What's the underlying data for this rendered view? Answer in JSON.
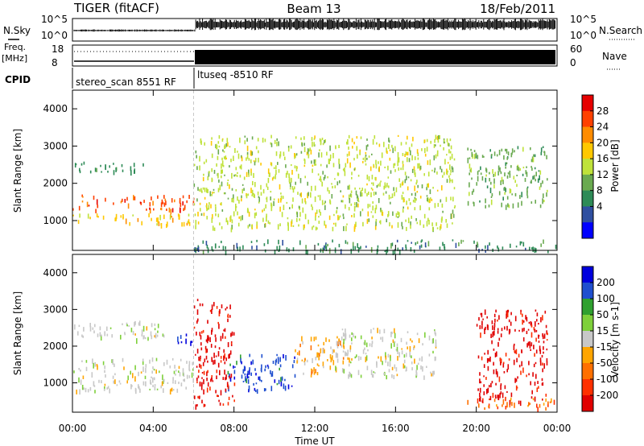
{
  "header": {
    "instrument": "TIGER (fitACF)",
    "beam": "Beam 13",
    "date": "18/Feb/2011"
  },
  "strips": {
    "nsky_label": "N.Sky",
    "nsearch_label": "N.Search",
    "noise_ticks_left": [
      "10^5",
      "10^0"
    ],
    "noise_ticks_right": [
      "10^5",
      "10^0"
    ],
    "freq_label_1": "Freq.",
    "freq_label_2": "[MHz]",
    "freq_ticks": [
      "18",
      "8"
    ],
    "nave_label": "Nave",
    "nave_ticks": [
      "60",
      "0"
    ],
    "cpid_label": "CPID",
    "cpid_segments": [
      "stereo_scan 8551 RF",
      "ltuseq -8510 RF"
    ]
  },
  "axes": {
    "xlabel": "Time UT",
    "ylabel": "Slant Range [km]",
    "xticks": [
      "00:00",
      "04:00",
      "08:00",
      "12:00",
      "16:00",
      "20:00",
      "00:00"
    ],
    "yticks": [
      "4000",
      "3000",
      "2000",
      "1000"
    ]
  },
  "colorbars": {
    "power": {
      "label": "Power [dB]",
      "ticks": [
        "28",
        "24",
        "20",
        "16",
        "12",
        "8",
        "4"
      ]
    },
    "velocity": {
      "label": "Velocity [m s-1]",
      "ticks": [
        "200",
        "100",
        "50",
        "15",
        "-15",
        "-50",
        "-100",
        "-200"
      ]
    }
  },
  "colors": {
    "power_scale": [
      "#0000ff",
      "#2f4fa0",
      "#2e8b57",
      "#6aaa50",
      "#bfe23a",
      "#ffc800",
      "#ff8c00",
      "#ff4000",
      "#e60000"
    ],
    "velocity_scale": [
      "#0000dd",
      "#1f4fcf",
      "#2fa02f",
      "#7ed03a",
      "#c8c8c8",
      "#ffa500",
      "#ff7000",
      "#ff3000",
      "#e00000"
    ]
  },
  "chart_data": [
    {
      "type": "heatmap",
      "panel": "power",
      "x_range": [
        "00:00",
        "24:00"
      ],
      "ylim": [
        200,
        4500
      ],
      "ylabel": "Slant Range [km]",
      "xlabel": "Time UT",
      "colorbar_range_dB": [
        0,
        32
      ],
      "features": [
        {
          "t_start": 0.0,
          "t_end": 6.0,
          "range_km": [
            1300,
            1700
          ],
          "dB": 28
        },
        {
          "t_start": 0.0,
          "t_end": 6.0,
          "range_km": [
            900,
            1200
          ],
          "dB": 20
        },
        {
          "t_start": 0.0,
          "t_end": 3.5,
          "range_km": [
            2300,
            2600
          ],
          "dB": 8
        },
        {
          "t_start": 6.0,
          "t_end": 19.0,
          "range_km": [
            800,
            3300
          ],
          "dB": 16
        },
        {
          "t_start": 6.0,
          "t_end": 24.0,
          "range_km": [
            200,
            500
          ],
          "dB": 6
        },
        {
          "t_start": 19.5,
          "t_end": 23.5,
          "range_km": [
            1400,
            3000
          ],
          "dB": 12
        }
      ]
    },
    {
      "type": "heatmap",
      "panel": "velocity",
      "x_range": [
        "00:00",
        "24:00"
      ],
      "ylim": [
        200,
        4500
      ],
      "ylabel": "Slant Range [km]",
      "xlabel": "Time UT",
      "colorbar_range_ms": [
        -200,
        200
      ],
      "features": [
        {
          "t_start": 0.0,
          "t_end": 6.0,
          "range_km": [
            800,
            1700
          ],
          "velocity": 0
        },
        {
          "t_start": 0.0,
          "t_end": 4.5,
          "range_km": [
            2200,
            2700
          ],
          "velocity": 0
        },
        {
          "t_start": 5.0,
          "t_end": 6.0,
          "range_km": [
            2100,
            2400
          ],
          "velocity": 200
        },
        {
          "t_start": 7.5,
          "t_end": 11.0,
          "range_km": [
            800,
            1800
          ],
          "velocity": 150
        },
        {
          "t_start": 6.0,
          "t_end": 8.0,
          "range_km": [
            400,
            3300
          ],
          "velocity": -200
        },
        {
          "t_start": 11.0,
          "t_end": 13.5,
          "range_km": [
            1200,
            2300
          ],
          "velocity": -50
        },
        {
          "t_start": 13.0,
          "t_end": 18.0,
          "range_km": [
            1200,
            2500
          ],
          "velocity": 0
        },
        {
          "t_start": 19.5,
          "t_end": 24.0,
          "range_km": [
            300,
            600
          ],
          "velocity": -100
        },
        {
          "t_start": 20.0,
          "t_end": 23.5,
          "range_km": [
            500,
            3000
          ],
          "velocity": -200
        }
      ]
    }
  ]
}
